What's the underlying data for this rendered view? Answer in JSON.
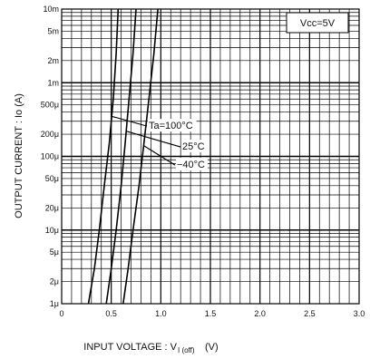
{
  "chart_data": {
    "type": "line",
    "xlabel": "INPUT VOLTAGE : V",
    "xlabel_sub": "I (off)",
    "xlabel_unit": "(V)",
    "ylabel": "OUTPUT CURRENT : Io (A)",
    "x_scale": "linear",
    "y_scale": "log",
    "xlim": [
      0,
      3.0
    ],
    "ylim": [
      1e-06,
      0.01
    ],
    "grid": true,
    "x_ticks": [
      0,
      0.5,
      1.0,
      1.5,
      2.0,
      2.5,
      3.0
    ],
    "x_tick_labels": [
      "0",
      "0.5",
      "1.0",
      "1.5",
      "2.0",
      "2.5",
      "3.0"
    ],
    "y_ticks": [
      1e-06,
      2e-06,
      5e-06,
      1e-05,
      2e-05,
      5e-05,
      0.0001,
      0.0002,
      0.0005,
      0.001,
      0.002,
      0.005,
      0.01
    ],
    "y_tick_labels": [
      "1μ",
      "2μ",
      "5μ",
      "10μ",
      "20μ",
      "50μ",
      "100μ",
      "200μ",
      "500μ",
      "1m",
      "2m",
      "5m",
      "10m"
    ],
    "condition_label": "Vcc=5V",
    "series": [
      {
        "name": "Ta=100°C",
        "x": [
          0.27,
          0.33,
          0.38,
          0.43,
          0.48,
          0.52,
          0.55,
          0.57
        ],
        "y": [
          1e-06,
          3e-06,
          1e-05,
          4e-05,
          0.00015,
          0.0006,
          0.0025,
          0.01
        ]
      },
      {
        "name": "25°C",
        "x": [
          0.45,
          0.5,
          0.55,
          0.6,
          0.64,
          0.68,
          0.72,
          0.75
        ],
        "y": [
          1e-06,
          3e-06,
          1e-05,
          4e-05,
          0.00015,
          0.0006,
          0.0025,
          0.01
        ]
      },
      {
        "name": "−40°C",
        "x": [
          0.62,
          0.67,
          0.72,
          0.78,
          0.83,
          0.88,
          0.93,
          0.97
        ],
        "y": [
          1e-06,
          3e-06,
          1e-05,
          4e-05,
          0.00015,
          0.0006,
          0.0025,
          0.01
        ]
      }
    ],
    "annotations": [
      "Ta=100°C",
      "25°C",
      "−40°C"
    ]
  }
}
